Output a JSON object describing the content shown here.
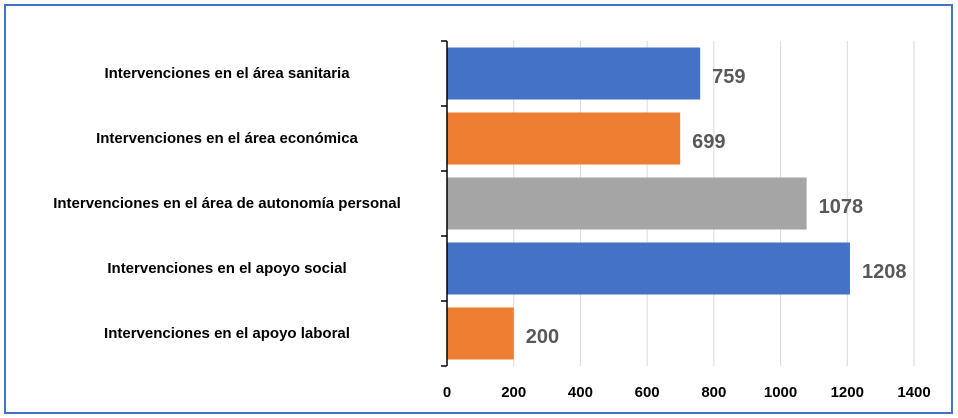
{
  "chart_data": {
    "type": "bar",
    "orientation": "horizontal",
    "categories": [
      "Intervenciones en el área sanitaria",
      "Intervenciones en el área económica",
      "Intervenciones en el área de autonomía personal",
      "Intervenciones en el apoyo social",
      "Intervenciones en el apoyo laboral"
    ],
    "values": [
      759,
      699,
      1078,
      1208,
      200
    ],
    "colors": [
      "#4472c4",
      "#ed7d31",
      "#a5a5a5",
      "#4472c4",
      "#ed7d31"
    ],
    "xlim": [
      0,
      1400
    ],
    "xticks": [
      0,
      200,
      400,
      600,
      800,
      1000,
      1200,
      1400
    ],
    "grid": true
  }
}
